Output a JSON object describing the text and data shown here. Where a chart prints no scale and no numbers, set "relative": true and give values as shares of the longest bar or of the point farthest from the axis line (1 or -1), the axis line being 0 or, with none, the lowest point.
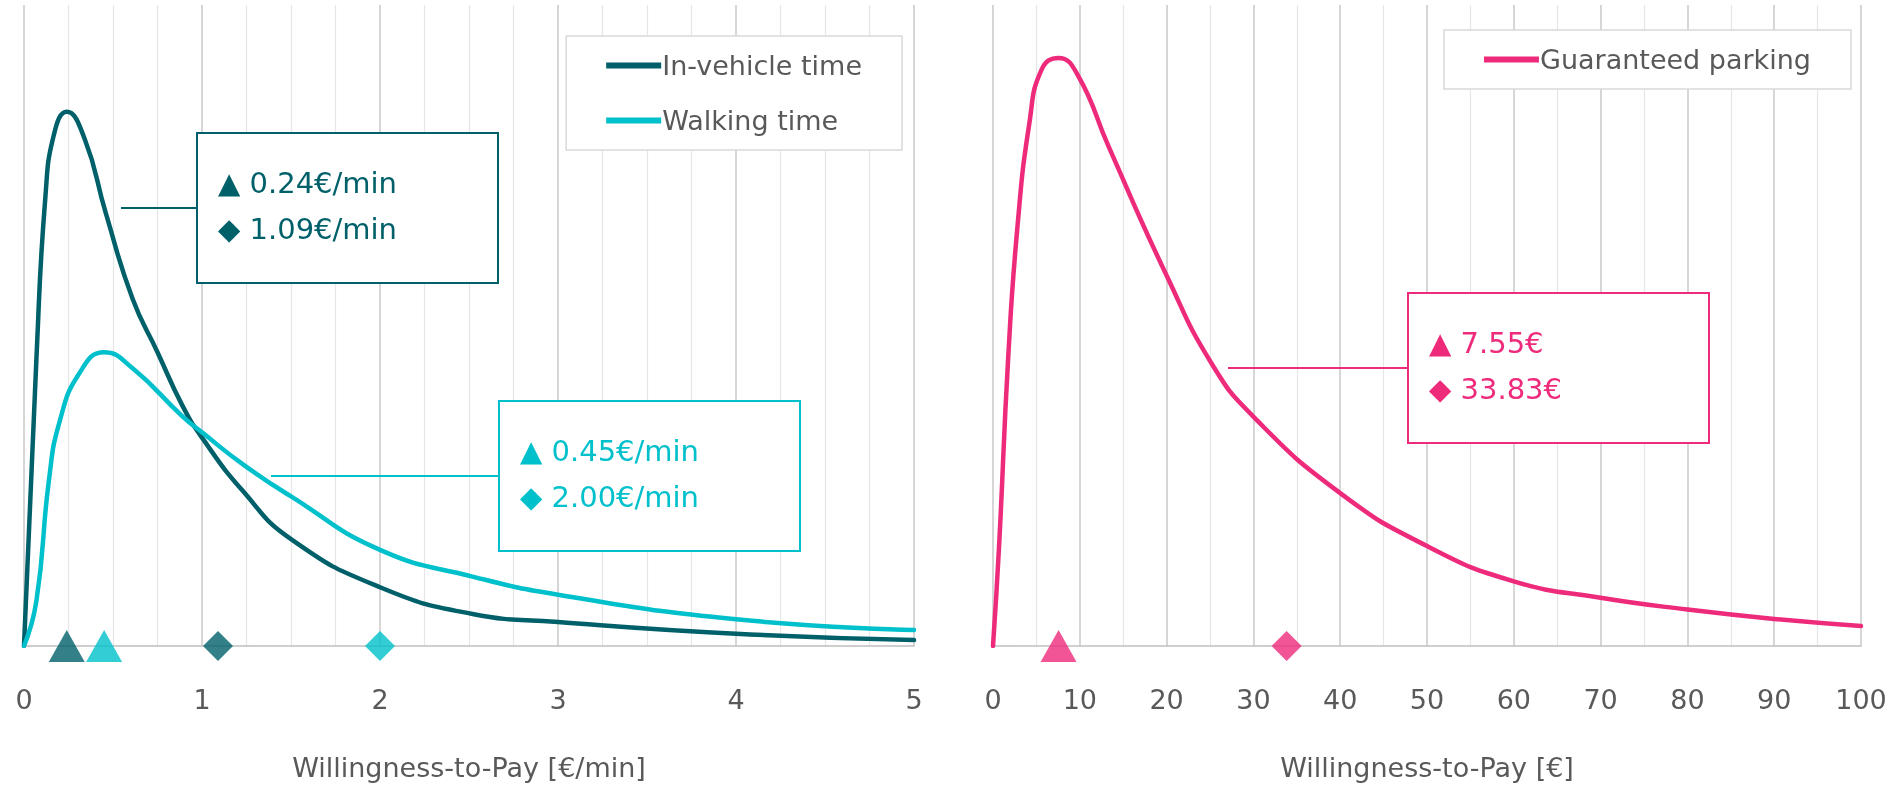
{
  "chart_data": [
    {
      "type": "line",
      "relative": true,
      "xlabel": "Willingness-to-Pay [€/min]",
      "xlim": [
        0,
        5
      ],
      "xticks": [
        0,
        {
          "value": 0.25,
          "label": null
        },
        {
          "value": 0.5,
          "label": null
        },
        {
          "value": 0.75,
          "label": null
        },
        1,
        {
          "value": 1.25,
          "label": null
        },
        {
          "value": 1.5,
          "label": null
        },
        {
          "value": 1.75,
          "label": null
        },
        2,
        {
          "value": 2.25,
          "label": null
        },
        {
          "value": 2.5,
          "label": null
        },
        {
          "value": 2.75,
          "label": null
        },
        3,
        {
          "value": 3.25,
          "label": null
        },
        {
          "value": 3.5,
          "label": null
        },
        {
          "value": 3.75,
          "label": null
        },
        4,
        {
          "value": 4.25,
          "label": null
        },
        {
          "value": 4.5,
          "label": null
        },
        {
          "value": 4.75,
          "label": null
        },
        5
      ],
      "grid": "x",
      "legend": "top right",
      "tick_labels": "x",
      "line_style": "solid",
      "series": [
        {
          "name": "In-vehicle time",
          "color": "#00606a",
          "x": [
            0,
            0.07,
            0.12,
            0.17,
            0.24,
            0.34,
            0.46,
            0.61,
            0.75,
            0.89,
            1.0,
            1.23,
            1.5,
            2.0,
            2.52,
            3.0,
            4.0,
            5.0
          ],
          "values": [
            0,
            0.54,
            0.84,
            0.96,
            1,
            0.95,
            0.81,
            0.65,
            0.55,
            0.45,
            0.39,
            0.29,
            0.2,
            0.11,
            0.06,
            0.045,
            0.023,
            0.011
          ]
        },
        {
          "name": "Walking time",
          "color": "#00c0cc",
          "x": [
            0,
            0.07,
            0.14,
            0.2,
            0.31,
            0.45,
            0.61,
            0.89,
            1.0,
            1.23,
            1.5,
            2.0,
            2.52,
            3.0,
            4.0,
            5.0
          ],
          "values": [
            0,
            0.085,
            0.31,
            0.42,
            0.51,
            0.55,
            0.52,
            0.43,
            0.4,
            0.34,
            0.28,
            0.18,
            0.13,
            0.096,
            0.05,
            0.03
          ]
        },
        {
          "type": "scatter",
          "marker": "triangle",
          "color": "#00606a",
          "x": [
            0.24
          ],
          "values": [
            0
          ]
        },
        {
          "type": "scatter",
          "marker": "triangle",
          "color": "#00c0cc",
          "x": [
            0.45
          ],
          "values": [
            0
          ]
        },
        {
          "type": "scatter",
          "marker": "diamond",
          "color": "#00606a",
          "x": [
            1.09
          ],
          "values": [
            0
          ]
        },
        {
          "type": "scatter",
          "marker": "diamond",
          "color": "#00c0cc",
          "x": [
            2.0
          ],
          "values": [
            0
          ]
        }
      ],
      "annotations": [
        "▲ 0.24€/min\n◆ 1.09€/min",
        "▲ 0.45€/min\n◆ 2.00€/min"
      ]
    },
    {
      "type": "line",
      "relative": true,
      "xlabel": "Willingness-to-Pay [€]",
      "xlim": [
        0,
        100
      ],
      "xticks": [
        0,
        {
          "value": 5,
          "label": null
        },
        10,
        {
          "value": 15,
          "label": null
        },
        20,
        {
          "value": 25,
          "label": null
        },
        30,
        {
          "value": 35,
          "label": null
        },
        40,
        {
          "value": 45,
          "label": null
        },
        50,
        {
          "value": 55,
          "label": null
        },
        60,
        {
          "value": 65,
          "label": null
        },
        70,
        {
          "value": 75,
          "label": null
        },
        80,
        {
          "value": 85,
          "label": null
        },
        90,
        {
          "value": 95,
          "label": null
        },
        100
      ],
      "grid": "x",
      "legend": "top right",
      "tick_labels": "x",
      "line_style": "solid",
      "series": [
        {
          "name": "Guaranteed parking",
          "color": "#ee2a7b",
          "x": [
            0,
            0.7,
            1.75,
            2.8,
            4.2,
            5.6,
            7.55,
            9.8,
            13.3,
            20,
            25.2,
            30,
            40,
            50,
            60,
            70,
            80,
            90,
            100
          ],
          "values": [
            0,
            0.17,
            0.49,
            0.71,
            0.89,
            0.98,
            1,
            0.97,
            0.85,
            0.63,
            0.48,
            0.39,
            0.26,
            0.17,
            0.11,
            0.082,
            0.062,
            0.046,
            0.034
          ]
        },
        {
          "type": "scatter",
          "marker": "triangle",
          "color": "#ee2a7b",
          "x": [
            7.55
          ],
          "values": [
            0
          ]
        },
        {
          "type": "scatter",
          "marker": "diamond",
          "color": "#ee2a7b",
          "x": [
            33.83
          ],
          "values": [
            0
          ]
        }
      ],
      "annotations": [
        "▲ 7.55€\n◆ 33.83€"
      ]
    }
  ]
}
